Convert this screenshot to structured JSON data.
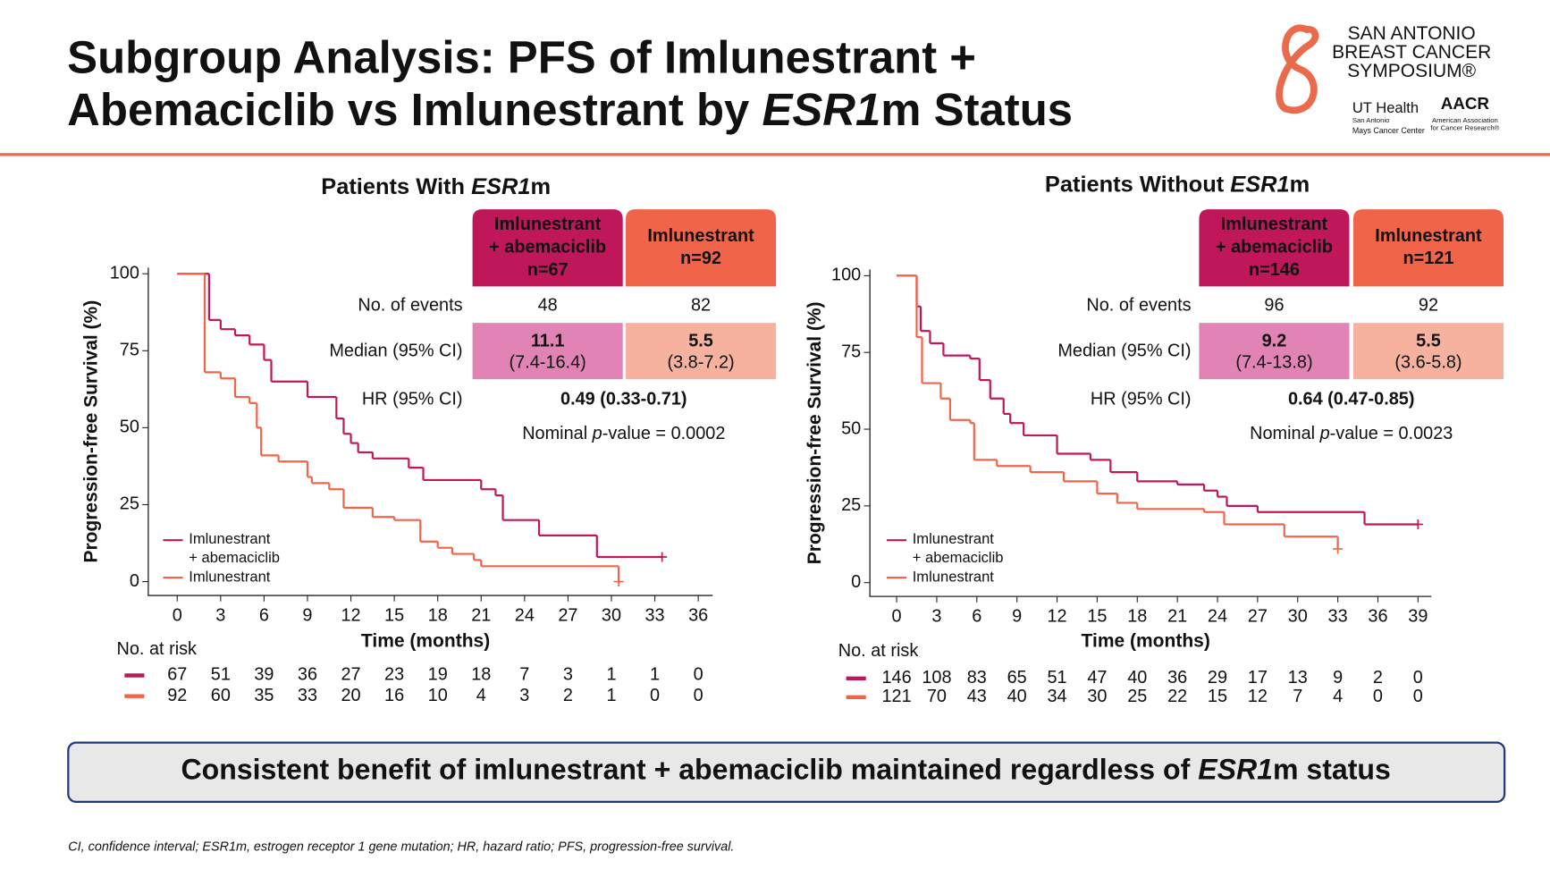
{
  "title": [
    [
      "Subgroup Analysis: PFS of Imlunestrant +"
    ],
    [
      "Abemaciclib vs Imlunestrant by ",
      "ESR1",
      "m Status"
    ]
  ],
  "logos": {
    "sabcs": [
      "SAN ANTONIO",
      "BREAST CANCER",
      "SYMPOSIUM®"
    ],
    "ut": [
      "UT Health",
      "San Antonio",
      "Mays Cancer Center"
    ],
    "aacr": [
      "AACR",
      "American Association",
      "for Cancer Research®"
    ]
  },
  "conclusion": [
    "Consistent benefit of imlunestrant + abemaciclib maintained regardless of ",
    "ESR1",
    "m status"
  ],
  "footnote": "CI, confidence interval; ESR1m, estrogen receptor 1 gene mutation; HR, hazard ratio; PFS, progression-free survival.",
  "chart_data": [
    {
      "type": "step",
      "title": [
        "Patients With ",
        "ESR1",
        "m"
      ],
      "x_label": "Time (months)",
      "y_label": "Progression-free Survival (%)",
      "xlim": [
        -2,
        37
      ],
      "ylim": [
        -4.5,
        102
      ],
      "xticks": [
        0,
        3,
        6,
        9,
        12,
        15,
        18,
        21,
        24,
        27,
        30,
        33,
        36
      ],
      "yticks": [
        0,
        25,
        50,
        75,
        100
      ],
      "series": [
        {
          "name": "Imlunestrant + abemaciclib",
          "color": "#c0175a",
          "x": [
            0,
            2.2,
            3,
            4,
            5,
            6,
            6.5,
            9,
            11,
            11.5,
            12,
            12.5,
            13.5,
            16,
            17,
            21,
            22,
            22.5,
            25,
            29,
            33.5
          ],
          "values": [
            100,
            85,
            82,
            80,
            77,
            72,
            65,
            60,
            53,
            48,
            45,
            42,
            40,
            37,
            33,
            30,
            28,
            20,
            15,
            8,
            8
          ]
        },
        {
          "name": "Imlunestrant",
          "color": "#f0654a",
          "x": [
            0,
            1.9,
            3,
            4,
            5,
            5.5,
            5.8,
            7,
            9,
            9.3,
            10.5,
            11.5,
            13.5,
            15,
            16.8,
            18,
            19,
            20.5,
            21,
            30.5
          ],
          "values": [
            100,
            68,
            66,
            60,
            58,
            50,
            41,
            39,
            34,
            32,
            30,
            24,
            21,
            20,
            13,
            11,
            9,
            7,
            5,
            0
          ]
        }
      ],
      "risk_table": {
        "label": "No. at risk",
        "rows": [
          [
            67,
            51,
            39,
            36,
            27,
            23,
            19,
            18,
            7,
            3,
            1,
            1,
            0
          ],
          [
            92,
            60,
            35,
            33,
            20,
            16,
            10,
            4,
            3,
            2,
            1,
            0,
            0
          ]
        ]
      },
      "summary": {
        "columns": [
          [
            "Imlunestrant",
            "+ abemaciclib",
            "n=67"
          ],
          [
            "Imlunestrant",
            "n=92"
          ]
        ],
        "row_labels": [
          "No. of events",
          "Median (95% CI)",
          "HR (95% CI)"
        ],
        "events": [
          48,
          82
        ],
        "median": [
          [
            "11.1",
            "(7.4-16.4)"
          ],
          [
            "5.5",
            "(3.8-7.2)"
          ]
        ],
        "hr": "0.49 (0.33-0.71)",
        "p_value": [
          "Nominal ",
          "p",
          "-value = 0.0002"
        ]
      }
    },
    {
      "type": "step",
      "title": [
        "Patients Without ",
        "ESR1",
        "m"
      ],
      "x_label": "Time (months)",
      "y_label": "Progression-free Survival (%)",
      "xlim": [
        -2,
        40
      ],
      "ylim": [
        -4.5,
        102
      ],
      "xticks": [
        0,
        3,
        6,
        9,
        12,
        15,
        18,
        21,
        24,
        27,
        30,
        33,
        36,
        39
      ],
      "yticks": [
        0,
        25,
        50,
        75,
        100
      ],
      "series": [
        {
          "name": "Imlunestrant + abemaciclib",
          "color": "#c0175a",
          "x": [
            0,
            1.5,
            1.8,
            2.5,
            3.5,
            5.5,
            6.2,
            7,
            8,
            8.5,
            9.5,
            12,
            14.5,
            16,
            18,
            21,
            23,
            24,
            24.7,
            27,
            35,
            39
          ],
          "values": [
            100,
            90,
            82,
            78,
            74,
            73,
            66,
            60,
            55,
            52,
            48,
            42,
            40,
            36,
            33,
            32,
            30,
            28,
            25,
            23,
            19,
            19
          ]
        },
        {
          "name": "Imlunestrant",
          "color": "#f0654a",
          "x": [
            0,
            1.5,
            1.9,
            3.3,
            4,
            5.5,
            5.8,
            7.5,
            10,
            12.5,
            15,
            16.5,
            18,
            23,
            24.5,
            29,
            33
          ],
          "values": [
            100,
            80,
            65,
            60,
            53,
            52,
            40,
            38,
            36,
            33,
            29,
            26,
            24,
            23,
            19,
            15,
            11
          ]
        }
      ],
      "risk_table": {
        "label": "No. at risk",
        "rows": [
          [
            146,
            108,
            83,
            65,
            51,
            47,
            40,
            36,
            29,
            17,
            13,
            9,
            2,
            0
          ],
          [
            121,
            70,
            43,
            40,
            34,
            30,
            25,
            22,
            15,
            12,
            7,
            4,
            0,
            0
          ]
        ]
      },
      "summary": {
        "columns": [
          [
            "Imlunestrant",
            "+ abemaciclib",
            "n=146"
          ],
          [
            "Imlunestrant",
            "n=121"
          ]
        ],
        "row_labels": [
          "No. of events",
          "Median (95% CI)",
          "HR (95% CI)"
        ],
        "events": [
          96,
          92
        ],
        "median": [
          [
            "9.2",
            "(7.4-13.8)"
          ],
          [
            "5.5",
            "(3.6-5.8)"
          ]
        ],
        "hr": "0.64 (0.47-0.85)",
        "p_value": [
          "Nominal ",
          "p",
          "-value = 0.0023"
        ]
      }
    }
  ]
}
